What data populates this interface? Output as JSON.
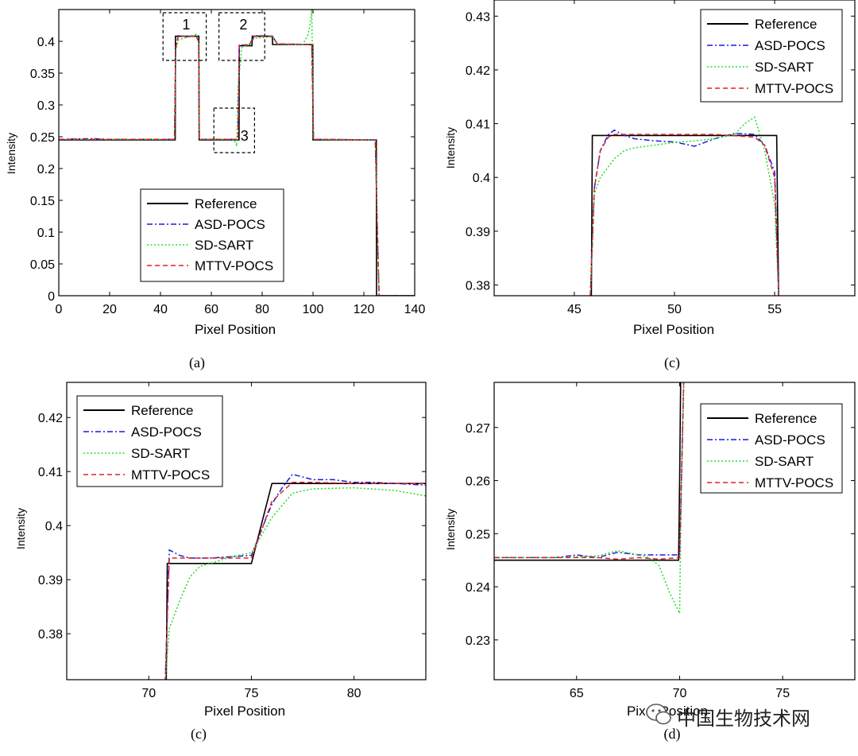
{
  "colors": {
    "Reference": "#000000",
    "ASD-POCS": "#1a1adc",
    "SD-SART": "#22dd22",
    "MTTV-POCS": "#dd2222"
  },
  "watermark": {
    "text": "中国生物技术网",
    "icon": "wechat-icon"
  },
  "chart_data": [
    {
      "id": "a",
      "type": "line",
      "caption": "(a)",
      "xlabel": "Pixel Position",
      "ylabel": "Intensity",
      "xlim": [
        0,
        140
      ],
      "ylim": [
        0,
        0.45
      ],
      "xticks": [
        0,
        20,
        40,
        60,
        80,
        100,
        120,
        140
      ],
      "xtick_labels": [
        "0",
        "20",
        "40",
        "60",
        "80",
        "100",
        "120",
        "140"
      ],
      "yticks": [
        0,
        0.05,
        0.1,
        0.15,
        0.2,
        0.25,
        0.3,
        0.35,
        0.4
      ],
      "ytick_labels": [
        "0",
        "0.05",
        "0.1",
        "0.15",
        "0.2",
        "0.25",
        "0.3",
        "0.35",
        "0.4"
      ],
      "legend": [
        "Reference",
        "ASD-POCS",
        "SD-SART",
        "MTTV-POCS"
      ],
      "legend_position": "lower-center",
      "annotations": [
        {
          "label": "1",
          "x": [
            41,
            58
          ],
          "y": [
            0.37,
            0.445
          ]
        },
        {
          "label": "2",
          "x": [
            63,
            81
          ],
          "y": [
            0.37,
            0.445
          ]
        },
        {
          "label": "3",
          "x": [
            61,
            77
          ],
          "y": [
            0.225,
            0.295
          ]
        }
      ],
      "series": [
        {
          "name": "Reference",
          "style": "solid",
          "x": [
            0,
            45.8,
            45.9,
            55.1,
            55.2,
            70.9,
            71,
            76,
            76.1,
            84,
            84.1,
            99.9,
            100,
            124.9,
            125,
            140
          ],
          "y": [
            0.245,
            0.245,
            0.408,
            0.408,
            0.245,
            0.245,
            0.393,
            0.393,
            0.408,
            0.408,
            0.395,
            0.395,
            0.245,
            0.245,
            0,
            0
          ]
        },
        {
          "name": "ASD-POCS",
          "style": "dashdot",
          "x": [
            0,
            14,
            18,
            45.5,
            46,
            47,
            50,
            54,
            55,
            55.3,
            70.5,
            71,
            72,
            75,
            77,
            84,
            86,
            99.5,
            100.2,
            124.5,
            125.4,
            126,
            140
          ],
          "y": [
            0.246,
            0.247,
            0.246,
            0.246,
            0.39,
            0.409,
            0.407,
            0.408,
            0.4,
            0.246,
            0.246,
            0.395,
            0.394,
            0.395,
            0.409,
            0.408,
            0.396,
            0.395,
            0.246,
            0.245,
            0.09,
            0,
            0
          ]
        },
        {
          "name": "SD-SART",
          "style": "dotted",
          "x": [
            0,
            45.5,
            46,
            47,
            50,
            54,
            55,
            55.3,
            68,
            69,
            70,
            70.5,
            72,
            75,
            77,
            84,
            86,
            96,
            98,
            99,
            99.5,
            100.2,
            124.5,
            125.4,
            126,
            140
          ],
          "y": [
            0.246,
            0.246,
            0.385,
            0.402,
            0.406,
            0.411,
            0.4,
            0.246,
            0.246,
            0.245,
            0.235,
            0.33,
            0.39,
            0.395,
            0.405,
            0.407,
            0.396,
            0.395,
            0.41,
            0.43,
            0.45,
            0.246,
            0.245,
            0.09,
            0,
            0
          ]
        },
        {
          "name": "MTTV-POCS",
          "style": "dashed",
          "x": [
            0,
            45.5,
            46,
            47,
            54,
            55,
            55.3,
            70.5,
            71,
            72,
            75,
            76.5,
            84,
            86,
            99.5,
            100.2,
            124.5,
            125.4,
            126,
            140
          ],
          "y": [
            0.246,
            0.246,
            0.39,
            0.408,
            0.408,
            0.4,
            0.246,
            0.246,
            0.394,
            0.394,
            0.394,
            0.408,
            0.408,
            0.396,
            0.395,
            0.246,
            0.245,
            0.09,
            0,
            0
          ]
        }
      ]
    },
    {
      "id": "b",
      "type": "line",
      "caption": "(c)",
      "xlabel": "Pixel Position",
      "ylabel": "Intensity",
      "xlim": [
        41,
        59
      ],
      "ylim": [
        0.378,
        0.433
      ],
      "xticks": [
        45,
        50,
        55
      ],
      "xtick_labels": [
        "45",
        "50",
        "55"
      ],
      "yticks": [
        0.38,
        0.39,
        0.4,
        0.41,
        0.42,
        0.43
      ],
      "ytick_labels": [
        "0.38",
        "0.39",
        "0.4",
        "0.41",
        "0.42",
        "0.43"
      ],
      "legend": [
        "Reference",
        "ASD-POCS",
        "SD-SART",
        "MTTV-POCS"
      ],
      "legend_position": "top-right",
      "series": [
        {
          "name": "Reference",
          "style": "solid",
          "x": [
            41,
            45.85,
            45.9,
            55.1,
            55.2,
            59
          ],
          "y": [
            0.377,
            0.377,
            0.4078,
            0.4078,
            0.377,
            0.377
          ]
        },
        {
          "name": "ASD-POCS",
          "style": "dashdot",
          "x": [
            45.8,
            46,
            46.3,
            46.7,
            47,
            47.5,
            48,
            49,
            50,
            51,
            52,
            53,
            54,
            54.5,
            55,
            55.2
          ],
          "y": [
            0.378,
            0.398,
            0.405,
            0.408,
            0.4088,
            0.4078,
            0.4072,
            0.4068,
            0.4066,
            0.4058,
            0.4072,
            0.4082,
            0.408,
            0.406,
            0.401,
            0.378
          ]
        },
        {
          "name": "SD-SART",
          "style": "dotted",
          "x": [
            45.8,
            46,
            46.3,
            46.7,
            47,
            47.5,
            48,
            49,
            50,
            51,
            52,
            53,
            53.5,
            54,
            54.5,
            55,
            55.2
          ],
          "y": [
            0.378,
            0.397,
            0.4,
            0.402,
            0.4035,
            0.405,
            0.4055,
            0.406,
            0.4065,
            0.4068,
            0.4072,
            0.408,
            0.41,
            0.4112,
            0.405,
            0.395,
            0.378
          ]
        },
        {
          "name": "MTTV-POCS",
          "style": "dashed",
          "x": [
            45.8,
            46,
            46.3,
            46.7,
            47,
            48,
            50,
            52,
            54,
            54.5,
            55,
            55.2
          ],
          "y": [
            0.378,
            0.398,
            0.405,
            0.4075,
            0.408,
            0.408,
            0.408,
            0.408,
            0.4075,
            0.406,
            0.4,
            0.378
          ]
        }
      ]
    },
    {
      "id": "c",
      "type": "line",
      "caption": "(c)",
      "xlabel": "Pixel Position",
      "ylabel": "Intensity",
      "xlim": [
        66,
        83.5
      ],
      "ylim": [
        0.3715,
        0.4265
      ],
      "xticks": [
        70,
        75,
        80
      ],
      "xtick_labels": [
        "70",
        "75",
        "80"
      ],
      "yticks": [
        0.38,
        0.39,
        0.4,
        0.41,
        0.42
      ],
      "ytick_labels": [
        "0.38",
        "0.39",
        "0.4",
        "0.41",
        "0.42"
      ],
      "legend": [
        "Reference",
        "ASD-POCS",
        "SD-SART",
        "MTTV-POCS"
      ],
      "legend_position": "top-left",
      "series": [
        {
          "name": "Reference",
          "style": "solid",
          "x": [
            70.85,
            70.9,
            75,
            76,
            83.5
          ],
          "y": [
            0.371,
            0.393,
            0.393,
            0.4078,
            0.4078
          ]
        },
        {
          "name": "ASD-POCS",
          "style": "dashdot",
          "x": [
            70.8,
            71,
            71.5,
            72,
            73,
            75,
            76,
            76.5,
            77,
            78,
            79,
            80,
            81,
            83.5
          ],
          "y": [
            0.371,
            0.3955,
            0.3945,
            0.394,
            0.394,
            0.3945,
            0.404,
            0.407,
            0.4095,
            0.4085,
            0.4085,
            0.408,
            0.408,
            0.4075
          ]
        },
        {
          "name": "SD-SART",
          "style": "dotted",
          "x": [
            70.8,
            71,
            71.5,
            72,
            72.5,
            73,
            74,
            75,
            76,
            77,
            78,
            80,
            82,
            83.5
          ],
          "y": [
            0.371,
            0.381,
            0.386,
            0.3905,
            0.3925,
            0.393,
            0.3942,
            0.395,
            0.4015,
            0.406,
            0.4068,
            0.407,
            0.4065,
            0.4055
          ]
        },
        {
          "name": "MTTV-POCS",
          "style": "dashed",
          "x": [
            70.8,
            71,
            72,
            73,
            75,
            76,
            77,
            78,
            80,
            83.5
          ],
          "y": [
            0.371,
            0.394,
            0.394,
            0.394,
            0.394,
            0.4045,
            0.408,
            0.408,
            0.4078,
            0.4078
          ]
        }
      ]
    },
    {
      "id": "d",
      "type": "line",
      "caption": "(d)",
      "xlabel": "Pixel Position",
      "ylabel": "Intensity",
      "xlim": [
        61,
        78.5
      ],
      "ylim": [
        0.2225,
        0.2785
      ],
      "xticks": [
        65,
        70,
        75
      ],
      "xtick_labels": [
        "65",
        "70",
        "75"
      ],
      "yticks": [
        0.23,
        0.24,
        0.25,
        0.26,
        0.27
      ],
      "ytick_labels": [
        "0.23",
        "0.24",
        "0.25",
        "0.26",
        "0.27"
      ],
      "legend": [
        "Reference",
        "ASD-POCS",
        "SD-SART",
        "MTTV-POCS"
      ],
      "legend_position": "top-right",
      "series": [
        {
          "name": "Reference",
          "style": "solid",
          "x": [
            61,
            69.95,
            70,
            70.05
          ],
          "y": [
            0.245,
            0.245,
            0.26,
            0.279
          ]
        },
        {
          "name": "ASD-POCS",
          "style": "dashdot",
          "x": [
            61,
            64,
            65,
            66,
            67,
            68,
            69,
            70,
            70.2
          ],
          "y": [
            0.2455,
            0.2455,
            0.246,
            0.2455,
            0.2465,
            0.246,
            0.246,
            0.246,
            0.279
          ]
        },
        {
          "name": "SD-SART",
          "style": "dotted",
          "x": [
            61,
            64,
            66,
            67,
            68,
            68.5,
            69,
            69.5,
            70,
            70.05,
            70.2
          ],
          "y": [
            0.2455,
            0.2455,
            0.2458,
            0.2468,
            0.246,
            0.2455,
            0.244,
            0.239,
            0.235,
            0.25,
            0.279
          ]
        },
        {
          "name": "MTTV-POCS",
          "style": "dashed",
          "x": [
            61,
            64,
            66,
            67,
            68,
            69,
            70,
            70.2
          ],
          "y": [
            0.2455,
            0.2455,
            0.2455,
            0.2452,
            0.2455,
            0.2452,
            0.2455,
            0.279
          ]
        }
      ]
    }
  ]
}
